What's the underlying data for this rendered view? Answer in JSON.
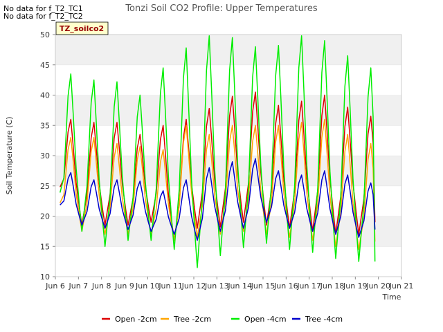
{
  "chart_data": {
    "type": "line",
    "title": "Tonzi Soil CO2 Profile: Upper Temperatures",
    "xlabel": "Time",
    "ylabel": "Soil Temperature (C)",
    "ylim": [
      10,
      50
    ],
    "yticks": [
      10,
      15,
      20,
      25,
      30,
      35,
      40,
      45,
      50
    ],
    "xlim": [
      6,
      21
    ],
    "xticks": [
      6,
      7,
      8,
      9,
      10,
      11,
      12,
      13,
      14,
      15,
      16,
      17,
      18,
      19,
      20,
      21
    ],
    "xtick_labels": [
      "Jun 6",
      "Jun 7",
      "Jun 8",
      "Jun 9",
      "Jun 10",
      "Jun 11",
      "Jun 12",
      "Jun 13",
      "Jun 14",
      "Jun 15",
      "Jun 16",
      "Jun 17",
      "Jun 18",
      "Jun 19",
      "Jun 20",
      "Jun 21"
    ],
    "grid": "horizontal bands",
    "legend_position": "bottom",
    "notes": [
      "No data for f_T2_TC1",
      "No data for f_T2_TC2"
    ],
    "site_label": "TZ_soilco2",
    "day_x": [
      6.15,
      7.15,
      8.15,
      9.15,
      10.15,
      11.15,
      12.15,
      13.15,
      14.15,
      15.15,
      16.15,
      17.15,
      18.15,
      19.15,
      20.15
    ],
    "series": [
      {
        "name": "Open -2cm",
        "color": "#dd0000",
        "x_start": 6.2,
        "x_end": 19.85,
        "peaks": [
          36,
          35.5,
          35.5,
          33.5,
          35,
          36,
          37.8,
          39.8,
          40.5,
          38.3,
          39,
          40,
          38,
          36.5
        ],
        "troughs": [
          22,
          18.5,
          18.5,
          18.5,
          19,
          16,
          18,
          18.2,
          19,
          18.5,
          18,
          17.5,
          17,
          17,
          19
        ]
      },
      {
        "name": "Tree -2cm",
        "color": "#ffa500",
        "x_start": 6.2,
        "x_end": 19.85,
        "peaks": [
          33,
          33,
          32,
          31.5,
          31,
          35,
          33.5,
          35,
          35,
          35,
          35.5,
          36,
          33.5,
          32
        ],
        "troughs": [
          19.5,
          17.5,
          17,
          17,
          17,
          16,
          16.5,
          17,
          17.5,
          17,
          16.5,
          16,
          15,
          14.5,
          15.8
        ]
      },
      {
        "name": "Open -4cm",
        "color": "#00ee00",
        "x_start": 6.2,
        "x_end": 19.85,
        "peaks": [
          43.5,
          42.5,
          42.2,
          40,
          44.5,
          47.8,
          49.8,
          49.5,
          48,
          48.2,
          49.8,
          49,
          46.5,
          44.5
        ],
        "troughs": [
          19,
          17.5,
          15,
          16,
          16,
          14.5,
          11.5,
          13.5,
          14.8,
          15.5,
          14.5,
          14,
          13,
          12.5,
          12.5
        ]
      },
      {
        "name": "Tree -4cm",
        "color": "#0000cc",
        "x_start": 6.2,
        "x_end": 19.85,
        "peaks": [
          27.2,
          26,
          26,
          25.8,
          24.2,
          26,
          28,
          29,
          29.5,
          27.5,
          26.8,
          27.5,
          26.8,
          25.5
        ],
        "troughs": [
          20.5,
          18.5,
          18,
          17.8,
          17.5,
          17,
          16,
          17.5,
          18,
          19,
          18,
          17.5,
          17,
          16.5,
          17.8
        ]
      }
    ]
  }
}
